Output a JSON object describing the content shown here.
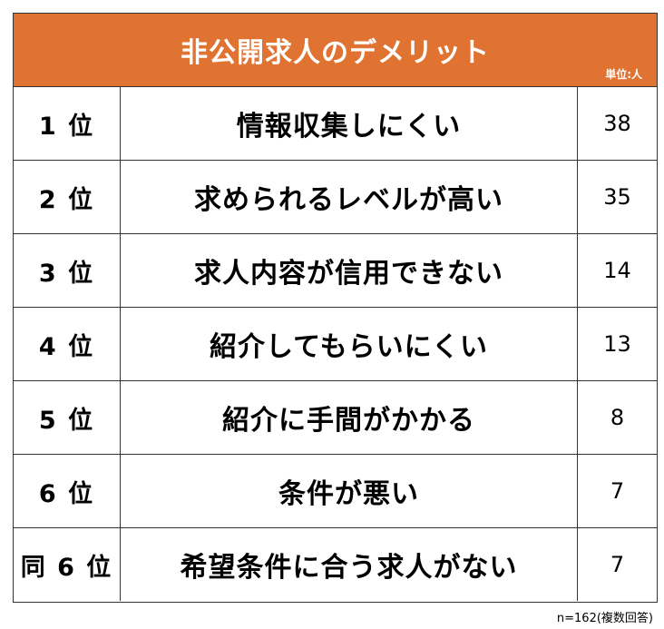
{
  "chart_data": {
    "type": "table",
    "title": "非公開求人のデメリット",
    "unit_label": "単位:人",
    "columns": [
      "rank",
      "item",
      "value"
    ],
    "rows": [
      {
        "rank": "1 位",
        "item": "情報収集しにくい",
        "value": 38
      },
      {
        "rank": "2 位",
        "item": "求められるレベルが高い",
        "value": 35
      },
      {
        "rank": "3 位",
        "item": "求人内容が信用できない",
        "value": 14
      },
      {
        "rank": "4 位",
        "item": "紹介してもらいにくい",
        "value": 13
      },
      {
        "rank": "5 位",
        "item": "紹介に手間がかかる",
        "value": 8
      },
      {
        "rank": "6 位",
        "item": "条件が悪い",
        "value": 7
      },
      {
        "rank": "同 6 位",
        "item": "希望条件に合う求人がない",
        "value": 7
      }
    ],
    "footnote": "n=162(複数回答)"
  },
  "colors": {
    "header_background": "#E07331",
    "header_text": "#ffffff",
    "border": "#333333"
  }
}
